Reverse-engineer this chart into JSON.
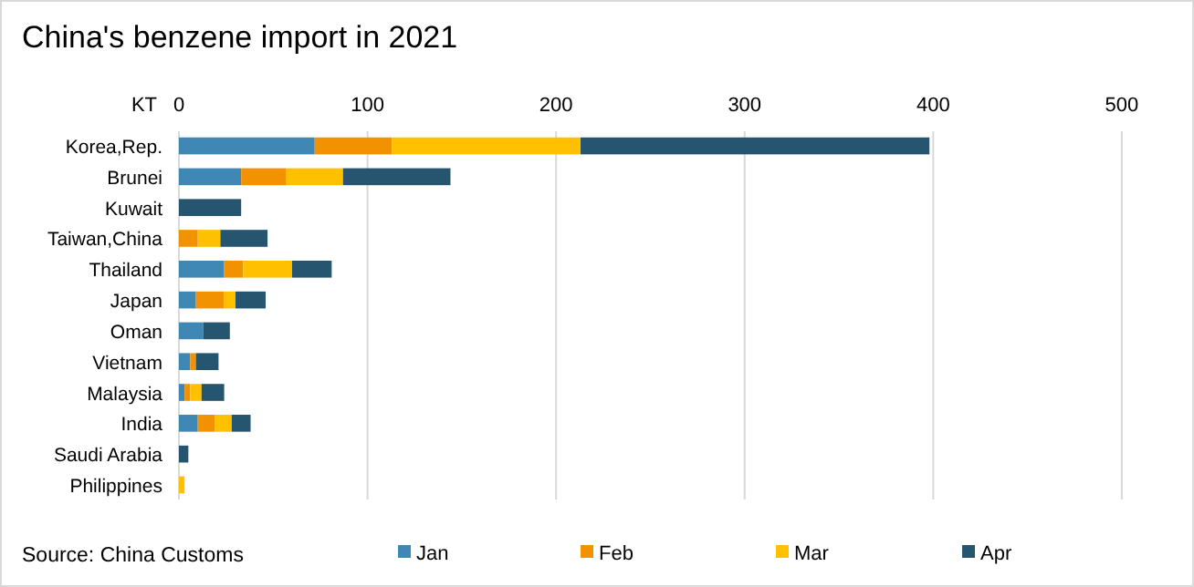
{
  "chart_data": {
    "type": "bar",
    "orientation": "horizontal",
    "stacked": true,
    "title": "China's benzene import in 2021",
    "xlabel": "KT",
    "categories": [
      "Korea,Rep.",
      "Brunei",
      "Kuwait",
      "Taiwan,China",
      "Thailand",
      "Japan",
      "Oman",
      "Vietnam",
      "Malaysia",
      "India",
      "Saudi Arabia",
      "Philippines"
    ],
    "series": [
      {
        "name": "Jan",
        "color": "#3f87b5",
        "values": [
          72,
          33,
          null,
          null,
          24,
          9,
          13,
          6,
          3,
          10,
          null,
          null
        ]
      },
      {
        "name": "Feb",
        "color": "#f39200",
        "values": [
          41,
          24,
          null,
          10,
          10,
          15,
          null,
          3,
          3,
          9,
          null,
          null
        ]
      },
      {
        "name": "Mar",
        "color": "#ffc000",
        "values": [
          100,
          30,
          null,
          12,
          26,
          6,
          null,
          null,
          6,
          9,
          null,
          3
        ]
      },
      {
        "name": "Apr",
        "color": "#265570",
        "values": [
          185,
          57,
          33,
          25,
          21,
          16,
          14,
          12,
          12,
          10,
          5,
          null
        ]
      }
    ],
    "xlim": [
      0,
      500
    ],
    "xticks": [
      0,
      100,
      200,
      300,
      400,
      500
    ],
    "grid": "x",
    "legend": "bottom",
    "annotations": [
      "Source: China Customs"
    ]
  }
}
